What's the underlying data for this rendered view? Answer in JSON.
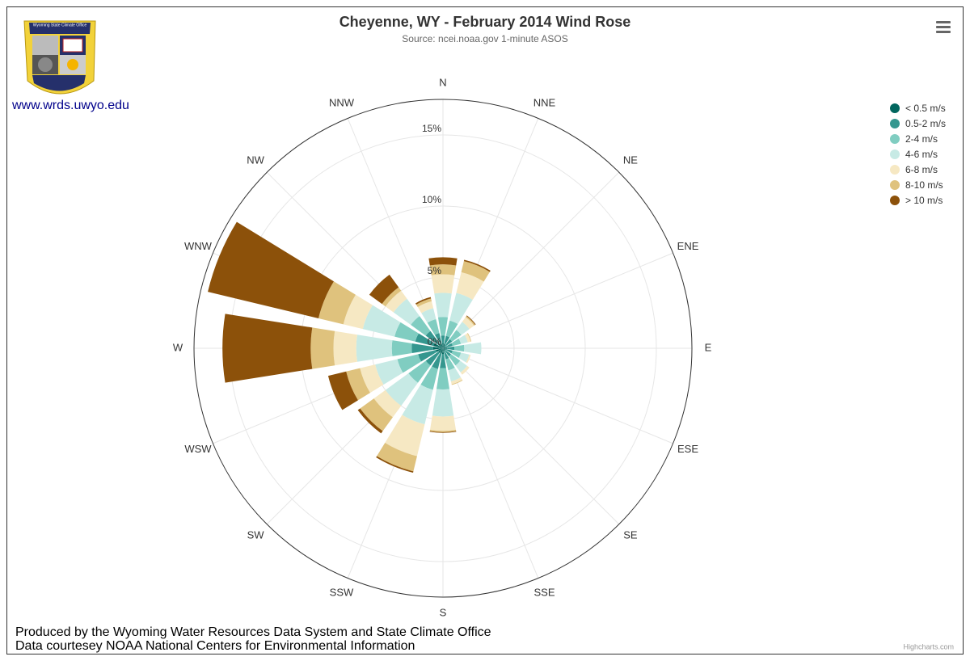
{
  "logo_text": "Wyoming State Climate Office",
  "link": "www.wrds.uwyo.edu",
  "footer": [
    "Produced by the Wyoming Water Resources Data System and State Climate Office",
    "Data courtesey NOAA National Centers for Environmental Information"
  ],
  "credits": "Highcharts.com",
  "chart_data": {
    "type": "windrose",
    "title": "Cheyenne, WY - February 2014 Wind Rose",
    "subtitle": "Source: ncei.noaa.gov 1-minute ASOS",
    "categories": [
      "N",
      "NNE",
      "NE",
      "ENE",
      "E",
      "ESE",
      "SE",
      "SSE",
      "S",
      "SSW",
      "SW",
      "WSW",
      "W",
      "WNW",
      "NW",
      "NNW"
    ],
    "ylim": [
      0,
      17.5
    ],
    "yticks": [
      {
        "value": 0,
        "label": "0%"
      },
      {
        "value": 5,
        "label": "5%"
      },
      {
        "value": 10,
        "label": "10%"
      },
      {
        "value": 15,
        "label": "15%"
      }
    ],
    "grid": true,
    "legend": "top-right",
    "stacked": true,
    "series": [
      {
        "name": "< 0.5 m/s",
        "color": "#01665e",
        "values": [
          0.35,
          0.3,
          0.2,
          0.2,
          0.3,
          0.2,
          0.2,
          0.2,
          0.4,
          0.4,
          0.4,
          0.5,
          0.7,
          0.7,
          0.4,
          0.3
        ]
      },
      {
        "name": "0.5-2 m/s",
        "color": "#35978f",
        "values": [
          0.55,
          0.6,
          0.6,
          0.5,
          0.5,
          0.5,
          0.5,
          0.6,
          1.0,
          1.1,
          1.1,
          1.3,
          1.5,
          1.3,
          1.1,
          0.8
        ]
      },
      {
        "name": "2-4 m/s",
        "color": "#80cdc1",
        "values": [
          1.3,
          1.1,
          0.8,
          0.6,
          0.7,
          0.6,
          0.8,
          0.8,
          1.5,
          1.5,
          1.5,
          1.5,
          1.4,
          1.5,
          1.3,
          1.0
        ]
      },
      {
        "name": "4-6 m/s",
        "color": "#c7eae5",
        "values": [
          1.7,
          2.0,
          0.7,
          0.5,
          1.2,
          0.6,
          0.6,
          0.8,
          1.9,
          2.5,
          2.0,
          1.6,
          2.5,
          2.3,
          1.5,
          0.8
        ]
      },
      {
        "name": "6-8 m/s",
        "color": "#f6e8c3",
        "values": [
          1.3,
          1.5,
          0.4,
          0.2,
          0,
          0.1,
          0.2,
          0.2,
          1.0,
          2.3,
          1.0,
          1.1,
          1.6,
          1.4,
          0.7,
          0.5
        ]
      },
      {
        "name": "8-10 m/s",
        "color": "#dfc27d",
        "values": [
          0.7,
          0.8,
          0.1,
          0.05,
          0,
          0,
          0,
          0.05,
          0.1,
          1.1,
          1.2,
          1.0,
          1.6,
          1.8,
          0.3,
          0.2
        ]
      },
      {
        "name": "> 10 m/s",
        "color": "#8c510a",
        "values": [
          0.5,
          0.1,
          0.05,
          0,
          0,
          0,
          0,
          0,
          0.05,
          0.1,
          0.2,
          1.3,
          6.2,
          8.0,
          1.1,
          0.1
        ]
      }
    ]
  }
}
